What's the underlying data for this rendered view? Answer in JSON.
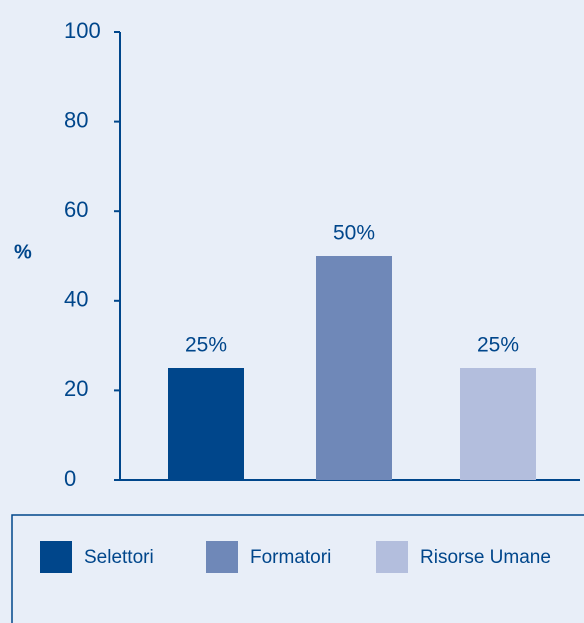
{
  "chart_data": {
    "type": "bar",
    "y_label": "%",
    "categories": [
      "Selettori",
      "Formatori",
      "Risorse Umane"
    ],
    "values": [
      25,
      50,
      25
    ],
    "value_labels": [
      "25%",
      "50%",
      "25%"
    ],
    "colors": [
      "#00468b",
      "#6f88b8",
      "#b3bedd"
    ],
    "ylim": [
      0,
      100
    ],
    "yticks": [
      0,
      20,
      40,
      60,
      80,
      100
    ],
    "grid": false
  }
}
